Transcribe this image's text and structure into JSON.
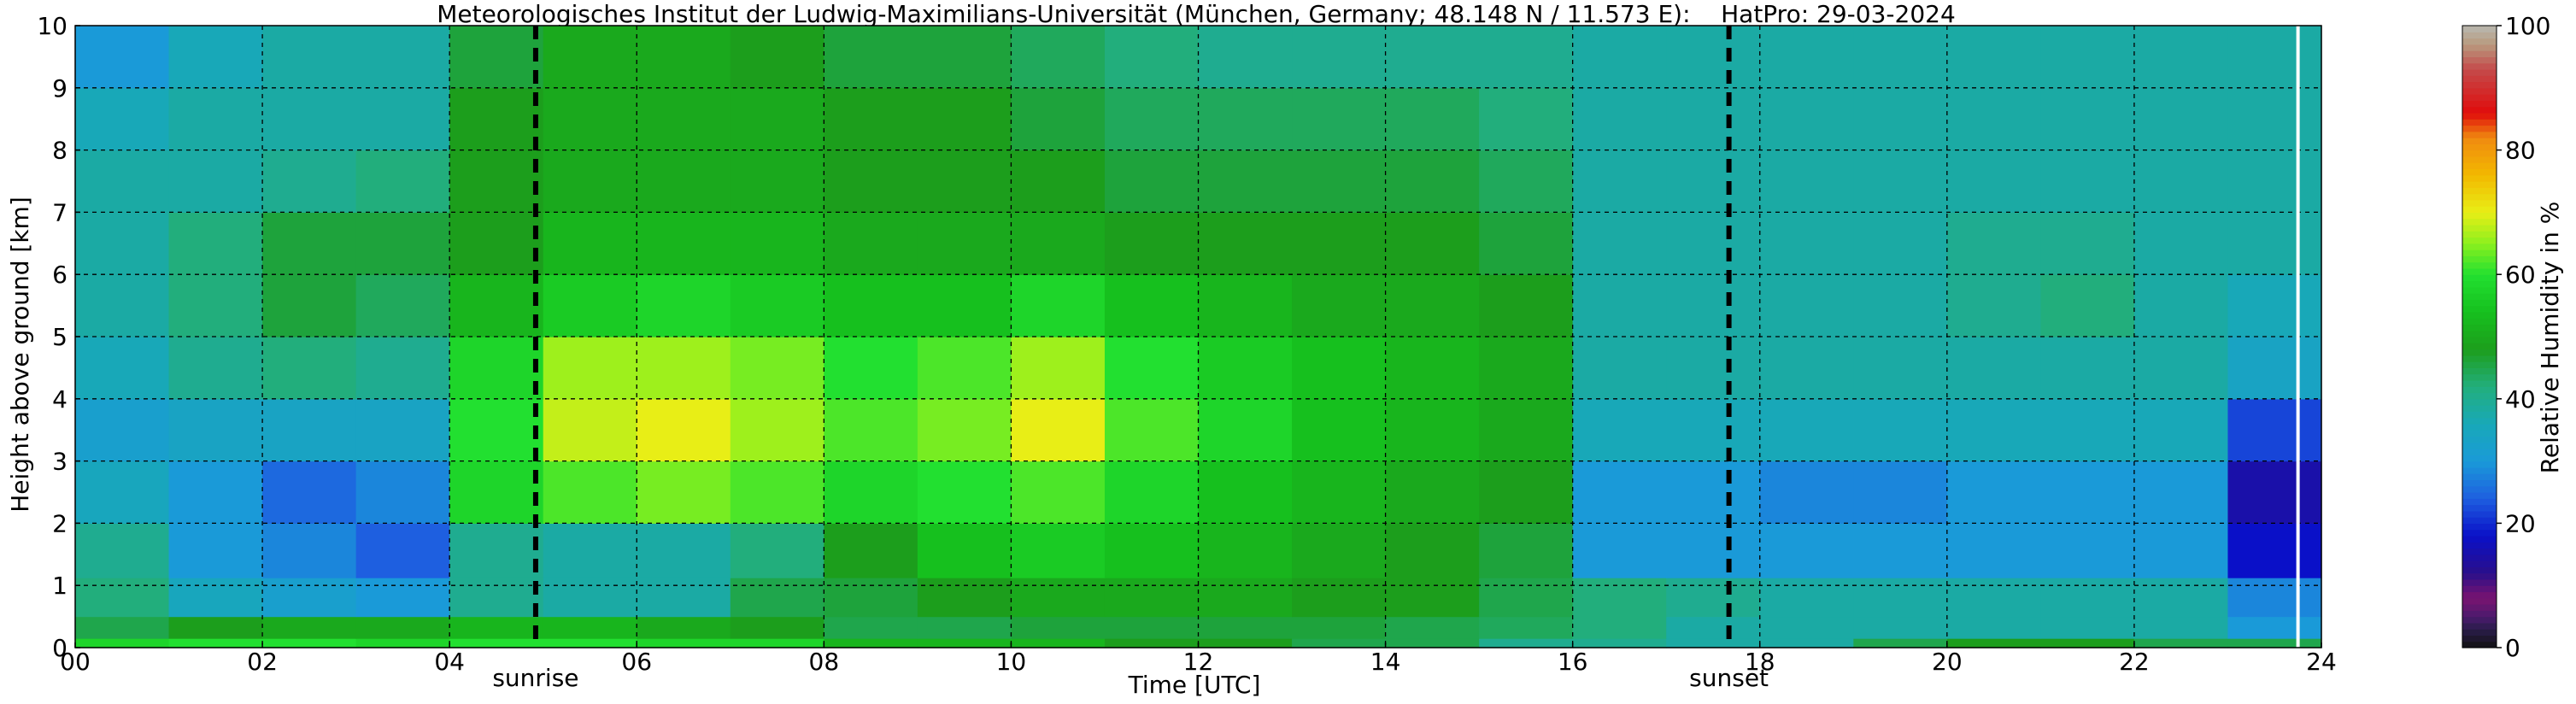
{
  "chart_data": {
    "type": "heatmap",
    "title": "Meteorologisches Institut der Ludwig-Maximilians-Universität (München, Germany; 48.148 N / 11.573 E):    HatPro: 29-03-2024",
    "xlabel": "Time [UTC]",
    "ylabel": "Height above ground [km]",
    "xlim": [
      0,
      24
    ],
    "ylim": [
      0,
      10
    ],
    "x_ticks": [
      "00",
      "02",
      "04",
      "06",
      "08",
      "10",
      "12",
      "14",
      "16",
      "18",
      "20",
      "22",
      "24"
    ],
    "y_ticks": [
      "0",
      "1",
      "2",
      "3",
      "4",
      "5",
      "6",
      "7",
      "8",
      "9",
      "10"
    ],
    "grid": true,
    "colorbar": {
      "label": "Relative Humidity in %",
      "ticks": [
        "0",
        "20",
        "40",
        "60",
        "80",
        "100"
      ],
      "range": [
        0,
        100
      ]
    },
    "events": [
      {
        "label": "sunrise",
        "time": 4.92
      },
      {
        "label": "sunset",
        "time": 17.67
      }
    ],
    "data_end_time": 23.75,
    "rows": [
      {
        "height_km": 0.05,
        "values": [
          58,
          60,
          60,
          58,
          60,
          60,
          58,
          58,
          52,
          52,
          52,
          48,
          48,
          45,
          45,
          40,
          40,
          38,
          38,
          45,
          48,
          48,
          45,
          45
        ]
      },
      {
        "height_km": 0.25,
        "values": [
          45,
          48,
          50,
          50,
          52,
          52,
          50,
          48,
          45,
          45,
          46,
          46,
          46,
          46,
          45,
          44,
          42,
          38,
          38,
          38,
          38,
          38,
          38,
          30
        ]
      },
      {
        "height_km": 0.75,
        "values": [
          42,
          35,
          32,
          30,
          40,
          38,
          38,
          45,
          46,
          48,
          50,
          50,
          50,
          48,
          48,
          45,
          42,
          40,
          38,
          38,
          38,
          38,
          38,
          28
        ]
      },
      {
        "height_km": 1.5,
        "values": [
          40,
          30,
          28,
          24,
          40,
          38,
          38,
          42,
          48,
          54,
          56,
          54,
          52,
          50,
          48,
          46,
          30,
          30,
          30,
          30,
          30,
          30,
          30,
          18
        ]
      },
      {
        "height_km": 2.5,
        "values": [
          35,
          30,
          25,
          28,
          58,
          62,
          64,
          62,
          58,
          60,
          62,
          58,
          54,
          52,
          50,
          48,
          30,
          30,
          28,
          28,
          30,
          30,
          30,
          15
        ]
      },
      {
        "height_km": 3.5,
        "values": [
          32,
          34,
          34,
          34,
          60,
          68,
          70,
          66,
          62,
          64,
          70,
          62,
          58,
          54,
          52,
          50,
          36,
          36,
          36,
          36,
          36,
          36,
          36,
          22
        ]
      },
      {
        "height_km": 4.5,
        "values": [
          36,
          40,
          42,
          40,
          58,
          66,
          66,
          64,
          60,
          62,
          66,
          60,
          56,
          54,
          52,
          50,
          38,
          38,
          38,
          38,
          38,
          38,
          38,
          34
        ]
      },
      {
        "height_km": 5.5,
        "values": [
          38,
          42,
          46,
          44,
          52,
          56,
          58,
          56,
          54,
          54,
          58,
          54,
          52,
          50,
          50,
          48,
          38,
          38,
          38,
          38,
          40,
          42,
          38,
          36
        ]
      },
      {
        "height_km": 6.5,
        "values": [
          38,
          42,
          46,
          46,
          48,
          52,
          52,
          52,
          50,
          50,
          50,
          48,
          48,
          48,
          48,
          46,
          38,
          38,
          38,
          38,
          40,
          40,
          38,
          38
        ]
      },
      {
        "height_km": 7.5,
        "values": [
          38,
          38,
          40,
          42,
          48,
          50,
          50,
          50,
          48,
          48,
          48,
          46,
          46,
          46,
          46,
          44,
          38,
          38,
          38,
          38,
          38,
          38,
          38,
          38
        ]
      },
      {
        "height_km": 8.5,
        "values": [
          36,
          38,
          38,
          38,
          48,
          50,
          50,
          50,
          48,
          48,
          46,
          44,
          44,
          44,
          44,
          42,
          38,
          38,
          38,
          38,
          38,
          38,
          38,
          38
        ]
      },
      {
        "height_km": 9.5,
        "values": [
          30,
          36,
          38,
          38,
          46,
          50,
          50,
          48,
          46,
          46,
          44,
          42,
          40,
          40,
          40,
          40,
          38,
          38,
          38,
          38,
          38,
          38,
          38,
          38
        ]
      }
    ]
  }
}
